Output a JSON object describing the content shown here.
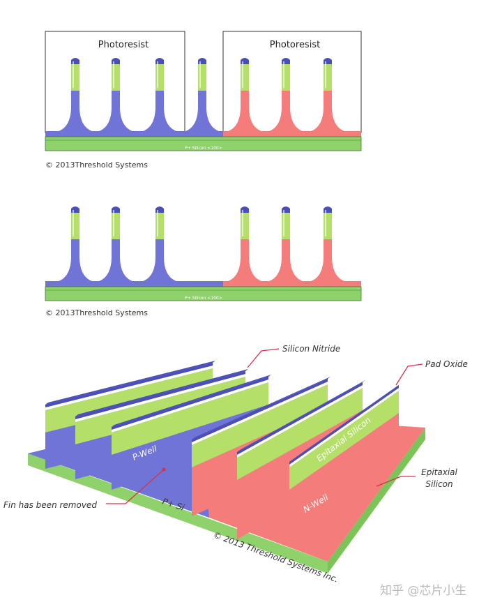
{
  "panels": [
    {
      "labels": [
        "Photoresist",
        "Photoresist"
      ],
      "substrate": "P+ Silicon <100>",
      "copyright": "© 2013Threshold Systems"
    },
    {
      "substrate": "P+ Silicon <100>",
      "copyright": "© 2013Threshold Systems"
    }
  ],
  "isometric": {
    "callouts": {
      "silicon_nitride": "Silicon Nitride",
      "pad_oxide": "Pad Oxide",
      "epitaxial_silicon": [
        "Epitaxial",
        "Silicon"
      ],
      "fin_removed": "Fin has been removed"
    },
    "regions": {
      "p_well": "P-Well",
      "n_well": "N-Well",
      "fin_epitaxial": "Epitaxial Silicon",
      "substrate": "P+ Si"
    },
    "copyright": "© 2013 Threshold Systems Inc."
  },
  "watermark": "知乎 @芯片小生"
}
